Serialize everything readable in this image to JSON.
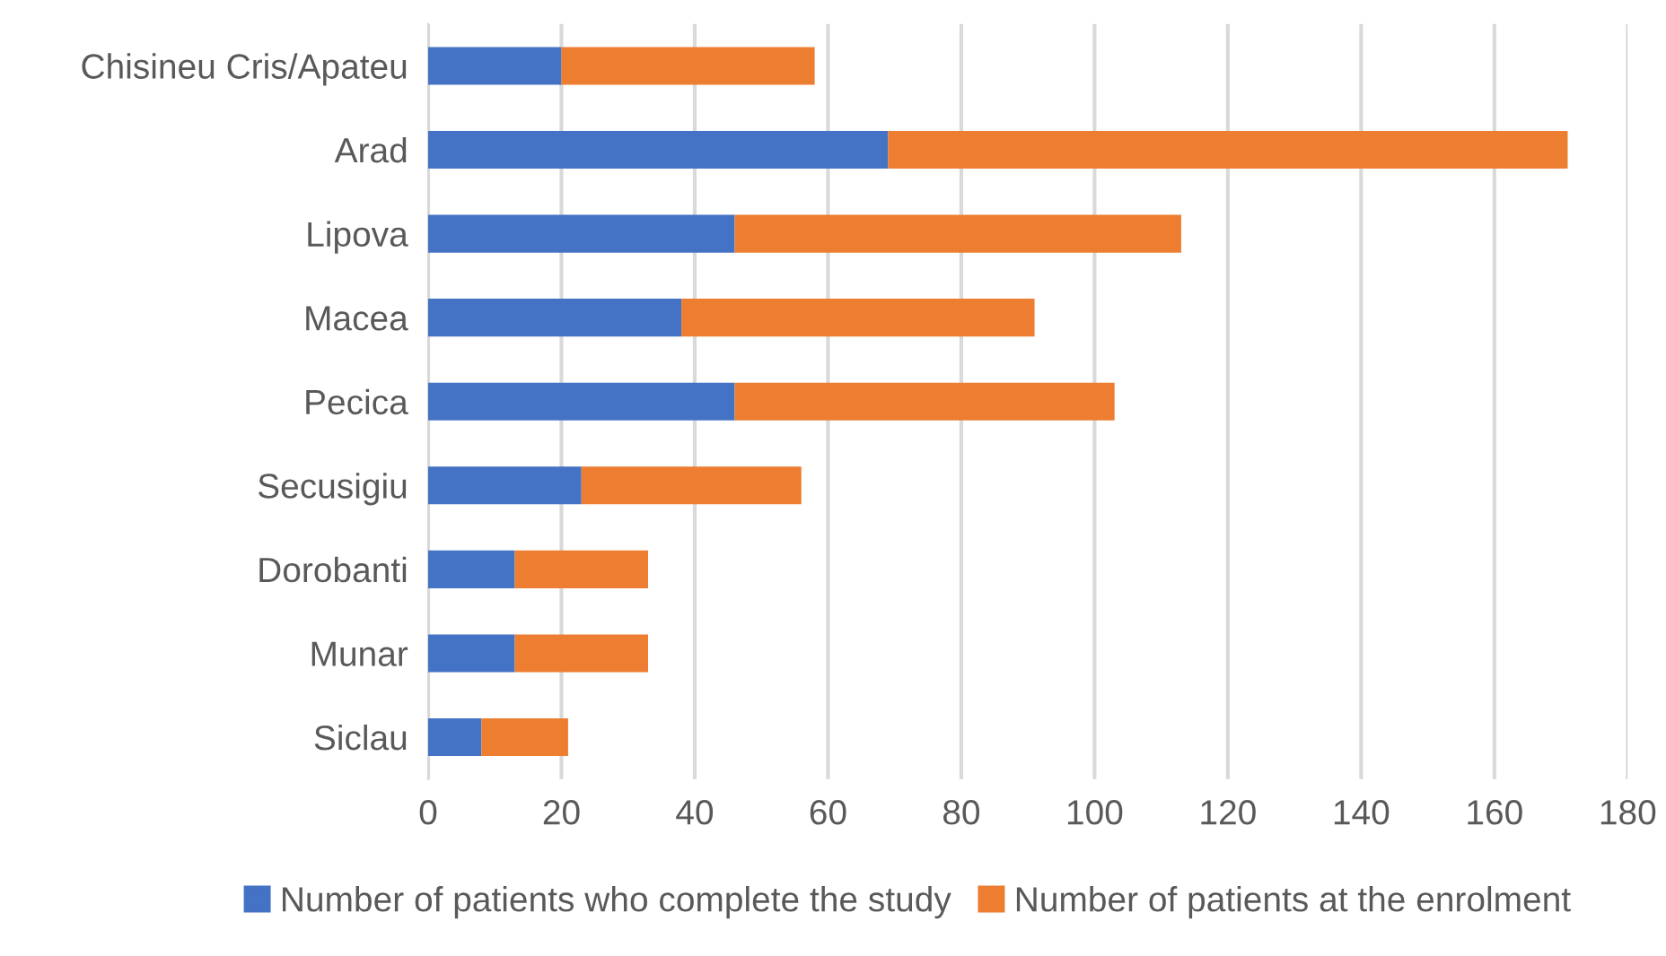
{
  "chart_data": {
    "type": "bar",
    "orientation": "horizontal",
    "stacked": true,
    "categories": [
      "Chisineu Cris/Apateu",
      "Arad",
      "Lipova",
      "Macea",
      "Pecica",
      "Secusigiu",
      "Dorobanti",
      "Munar",
      "Siclau"
    ],
    "series": [
      {
        "name": "Number of patients who complete the study",
        "color": "#4472c4",
        "values": [
          20,
          69,
          46,
          38,
          46,
          23,
          13,
          13,
          8
        ]
      },
      {
        "name": "Number of patients at the enrolment",
        "color": "#ed7d31",
        "values": [
          38,
          102,
          67,
          53,
          57,
          33,
          20,
          20,
          13
        ]
      }
    ],
    "xlim": [
      0,
      180
    ],
    "xticks": [
      0,
      20,
      40,
      60,
      80,
      100,
      120,
      140,
      160,
      180
    ],
    "grid": "x",
    "legend": "bottom"
  }
}
